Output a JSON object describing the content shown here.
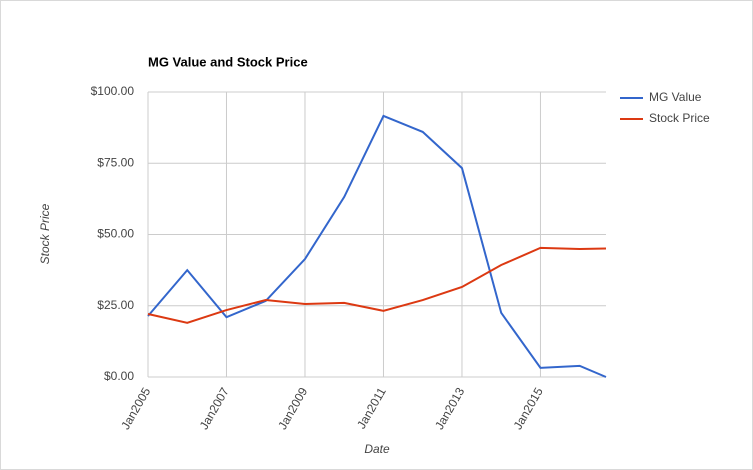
{
  "chart_data": {
    "type": "line",
    "title": "MG Value and Stock Price",
    "x_label": "Date",
    "y_label": "Stock Price",
    "x": [
      2005,
      2006,
      2007,
      2008,
      2009,
      2010,
      2011,
      2012,
      2013,
      2014,
      2015,
      2016,
      2016.67
    ],
    "series": [
      {
        "name": "MG Value",
        "color": "#3366cc",
        "values": [
          21.4,
          37.5,
          21,
          26.7,
          41.4,
          63.2,
          91.6,
          86,
          73.3,
          22.5,
          3.2,
          3.9,
          0
        ]
      },
      {
        "name": "Stock Price",
        "color": "#dc3912",
        "values": [
          22.1,
          19,
          23.5,
          27,
          25.6,
          26,
          23.2,
          27,
          31.6,
          39.3,
          45.3,
          44.9,
          45.1
        ]
      }
    ],
    "xlim": [
      2005,
      2016.67
    ],
    "xticks": [
      {
        "value": 2005,
        "label": "Jan2005"
      },
      {
        "value": 2007,
        "label": "Jan2007"
      },
      {
        "value": 2009,
        "label": "Jan2009"
      },
      {
        "value": 2011,
        "label": "Jan2011"
      },
      {
        "value": 2013,
        "label": "Jan2013"
      },
      {
        "value": 2015,
        "label": "Jan2015"
      }
    ],
    "ylim": [
      0,
      100
    ],
    "yticks": [
      {
        "value": 0,
        "label": "$0.00"
      },
      {
        "value": 25,
        "label": "$25.00"
      },
      {
        "value": 50,
        "label": "$50.00"
      },
      {
        "value": 75,
        "label": "$75.00"
      },
      {
        "value": 100,
        "label": "$100.00"
      }
    ],
    "grid": true,
    "legend": "right"
  }
}
